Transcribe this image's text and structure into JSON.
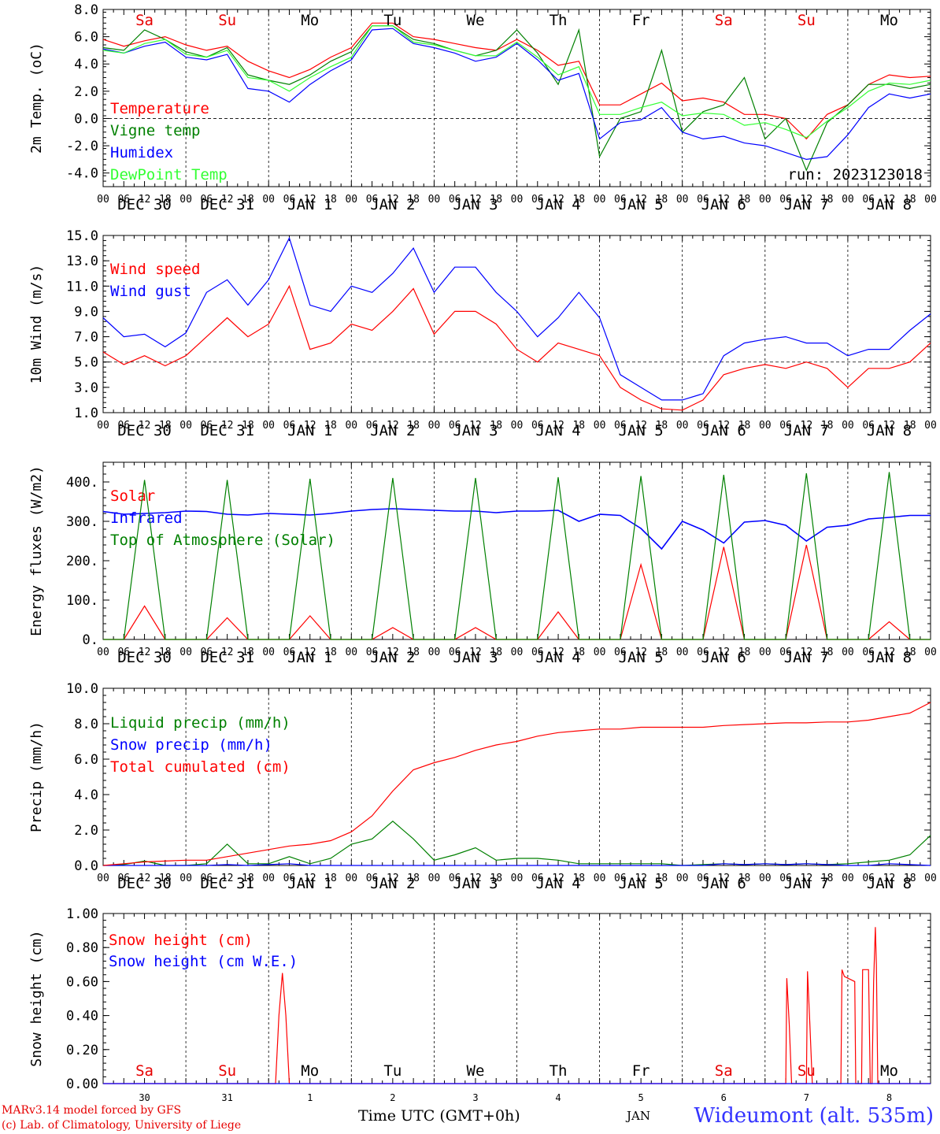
{
  "run_label": "run: 2023123018",
  "station_title": "Wideumont (alt. 535m)",
  "credits": [
    "MARv3.14 model forced by GFS",
    "(c) Lab. of Climatology, University of Liege"
  ],
  "x_axis_label": "Time UTC (GMT+0h)",
  "month_label": "JAN",
  "day_names": [
    "Sa",
    "Su",
    "Mo",
    "Tu",
    "We",
    "Th",
    "Fr",
    "Sa",
    "Su",
    "Mo"
  ],
  "weekend_flags": [
    true,
    true,
    false,
    false,
    false,
    false,
    false,
    true,
    true,
    false
  ],
  "date_labels": [
    "DEC 30",
    "DEC 31",
    "JAN  1",
    "JAN  2",
    "JAN  3",
    "JAN  4",
    "JAN  5",
    "JAN  6",
    "JAN  7",
    "JAN  8"
  ],
  "bottom_day_numbers": [
    "30",
    "31",
    "1",
    "2",
    "3",
    "4",
    "5",
    "6",
    "7",
    "8"
  ],
  "hour_ticks": [
    "00",
    "06",
    "12",
    "18"
  ],
  "final_hour_tick": "00",
  "chart_data": [
    {
      "type": "line",
      "ylabel": "2m Temp. (oC)",
      "ylim": [
        -5,
        8
      ],
      "yticks": [
        -4,
        -2,
        0,
        2,
        4,
        6,
        8
      ],
      "ytick_labels": [
        "-4.0",
        "-2.0",
        "0.0",
        "2.0",
        "4.0",
        "6.0",
        "8.0"
      ],
      "ref_line": 0,
      "x": [
        0,
        6,
        12,
        18,
        24,
        30,
        36,
        42,
        48,
        54,
        60,
        66,
        72,
        78,
        84,
        90,
        96,
        102,
        108,
        114,
        120,
        126,
        132,
        138,
        144,
        150,
        156,
        162,
        168,
        174,
        180,
        186,
        192,
        198,
        204,
        210,
        216,
        222,
        228,
        234,
        240
      ],
      "series": [
        {
          "name": "Temperature",
          "color": "#ff0000",
          "values": [
            5.8,
            5.3,
            5.7,
            6.0,
            5.4,
            5.0,
            5.3,
            4.2,
            3.5,
            3.0,
            3.6,
            4.5,
            5.2,
            7.0,
            7.0,
            6.0,
            5.8,
            5.5,
            5.2,
            5.0,
            5.8,
            5.0,
            3.9,
            4.2,
            1.0,
            1.0,
            1.8,
            2.6,
            1.3,
            1.5,
            1.2,
            0.3,
            0.3,
            0.0,
            -1.5,
            0.3,
            1.0,
            2.5,
            3.2,
            3.0,
            3.1
          ]
        },
        {
          "name": "Vigne temp",
          "color": "#008000",
          "values": [
            5.2,
            5.0,
            6.5,
            5.8,
            4.9,
            4.5,
            5.2,
            3.2,
            2.8,
            2.5,
            3.2,
            4.2,
            4.9,
            6.8,
            6.8,
            5.8,
            5.5,
            5.0,
            4.6,
            5.0,
            6.5,
            4.8,
            2.5,
            6.5,
            -2.8,
            0.0,
            0.5,
            5.0,
            -1.0,
            0.5,
            1.0,
            3.0,
            -1.5,
            0.0,
            -3.8,
            -0.3,
            1.0,
            2.5,
            2.5,
            2.2,
            2.5
          ]
        },
        {
          "name": "Humidex",
          "color": "#0000ff",
          "values": [
            5.1,
            4.8,
            5.3,
            5.6,
            4.5,
            4.3,
            4.7,
            2.2,
            2.0,
            1.2,
            2.5,
            3.5,
            4.3,
            6.5,
            6.6,
            5.5,
            5.2,
            4.8,
            4.2,
            4.5,
            5.5,
            4.3,
            2.8,
            3.3,
            -1.5,
            -0.3,
            -0.1,
            0.8,
            -1.0,
            -1.5,
            -1.3,
            -1.8,
            -2.0,
            -2.5,
            -3.0,
            -2.8,
            -1.2,
            0.8,
            1.8,
            1.5,
            1.8
          ]
        },
        {
          "name": "DewPoint Temp",
          "color": "#33ff33",
          "values": [
            5.0,
            4.8,
            5.5,
            5.8,
            4.7,
            4.5,
            5.0,
            3.0,
            2.8,
            2.0,
            3.0,
            3.8,
            4.5,
            6.8,
            6.8,
            5.6,
            5.4,
            5.0,
            4.6,
            4.6,
            5.6,
            4.5,
            3.2,
            3.8,
            0.3,
            0.3,
            0.8,
            1.2,
            0.2,
            0.4,
            0.3,
            -0.5,
            -0.3,
            -0.8,
            -1.4,
            -0.2,
            0.8,
            2.0,
            2.6,
            2.5,
            2.8
          ]
        }
      ]
    },
    {
      "type": "line",
      "ylabel": "10m Wind (m/s)",
      "ylim": [
        1,
        15
      ],
      "yticks": [
        1,
        3,
        5,
        7,
        9,
        11,
        13,
        15
      ],
      "ytick_labels": [
        "1.0",
        "3.0",
        "5.0",
        "7.0",
        "9.0",
        "11.0",
        "13.0",
        "15.0"
      ],
      "ref_line": 5,
      "x": [
        0,
        6,
        12,
        18,
        24,
        30,
        36,
        42,
        48,
        54,
        60,
        66,
        72,
        78,
        84,
        90,
        96,
        102,
        108,
        114,
        120,
        126,
        132,
        138,
        144,
        150,
        156,
        162,
        168,
        174,
        180,
        186,
        192,
        198,
        204,
        210,
        216,
        222,
        228,
        234,
        240
      ],
      "series": [
        {
          "name": "Wind speed",
          "color": "#ff0000",
          "values": [
            5.8,
            4.8,
            5.5,
            4.7,
            5.5,
            7.0,
            8.5,
            7.0,
            8.0,
            11.0,
            6.0,
            6.5,
            8.0,
            7.5,
            9.0,
            10.8,
            7.2,
            9.0,
            9.0,
            8.0,
            6.0,
            5.0,
            6.5,
            6.0,
            5.5,
            3.0,
            2.0,
            1.3,
            1.2,
            2.0,
            4.0,
            4.5,
            4.8,
            4.5,
            5.0,
            4.5,
            3.0,
            4.5,
            4.5,
            5.0,
            6.5
          ]
        },
        {
          "name": "Wind gust",
          "color": "#0000ff",
          "values": [
            8.5,
            7.0,
            7.2,
            6.2,
            7.3,
            10.5,
            11.5,
            9.5,
            11.5,
            14.8,
            9.5,
            9.0,
            11.0,
            10.5,
            12.0,
            14.0,
            10.5,
            12.5,
            12.5,
            10.5,
            9.0,
            7.0,
            8.5,
            10.5,
            8.5,
            4.0,
            3.0,
            2.0,
            2.0,
            2.5,
            5.5,
            6.5,
            6.8,
            7.0,
            6.5,
            6.5,
            5.5,
            6.0,
            6.0,
            7.5,
            8.8
          ]
        }
      ]
    },
    {
      "type": "line",
      "ylabel": "Energy fluxes (W/m2)",
      "ylim": [
        0,
        450
      ],
      "yticks": [
        0,
        100,
        200,
        300,
        400
      ],
      "ytick_labels": [
        "0.",
        "100.",
        "200.",
        "300.",
        "400."
      ],
      "ref_line": null,
      "x": [
        0,
        6,
        12,
        18,
        24,
        30,
        36,
        42,
        48,
        54,
        60,
        66,
        72,
        78,
        84,
        90,
        96,
        102,
        108,
        114,
        120,
        126,
        132,
        138,
        144,
        150,
        156,
        162,
        168,
        174,
        180,
        186,
        192,
        198,
        204,
        210,
        216,
        222,
        228,
        234,
        240
      ],
      "series": [
        {
          "name": "Solar",
          "color": "#ff0000",
          "values": [
            0,
            0,
            85,
            0,
            0,
            0,
            55,
            0,
            0,
            0,
            60,
            0,
            0,
            0,
            30,
            0,
            0,
            0,
            30,
            0,
            0,
            0,
            70,
            0,
            0,
            0,
            190,
            0,
            0,
            0,
            235,
            0,
            0,
            0,
            240,
            0,
            0,
            0,
            45,
            0,
            0
          ]
        },
        {
          "name": "Infrared",
          "color": "#0000ff",
          "values": [
            325,
            318,
            320,
            322,
            326,
            325,
            318,
            316,
            320,
            318,
            316,
            320,
            326,
            330,
            332,
            330,
            328,
            326,
            326,
            322,
            326,
            326,
            328,
            300,
            318,
            315,
            282,
            230,
            300,
            278,
            245,
            298,
            302,
            290,
            250,
            285,
            290,
            306,
            310,
            315,
            315
          ]
        },
        {
          "name": "Top of Atmosphere (Solar)",
          "color": "#008000",
          "values": [
            0,
            0,
            405,
            0,
            0,
            0,
            405,
            0,
            0,
            0,
            408,
            0,
            0,
            0,
            410,
            0,
            0,
            0,
            410,
            0,
            0,
            0,
            412,
            0,
            0,
            0,
            415,
            0,
            0,
            0,
            418,
            0,
            0,
            0,
            422,
            0,
            0,
            0,
            425,
            0,
            0
          ]
        }
      ]
    },
    {
      "type": "line",
      "ylabel": "Precip (mm/h)",
      "ylim": [
        0,
        10
      ],
      "yticks": [
        0,
        2,
        4,
        6,
        8,
        10
      ],
      "ytick_labels": [
        "0.0",
        "2.0",
        "4.0",
        "6.0",
        "8.0",
        "10.0"
      ],
      "ref_line": null,
      "x": [
        0,
        6,
        12,
        18,
        24,
        30,
        36,
        42,
        48,
        54,
        60,
        66,
        72,
        78,
        84,
        90,
        96,
        102,
        108,
        114,
        120,
        126,
        132,
        138,
        144,
        150,
        156,
        162,
        168,
        174,
        180,
        186,
        192,
        198,
        204,
        210,
        216,
        222,
        228,
        234,
        240
      ],
      "series": [
        {
          "name": "Liquid precip (mm/h)",
          "color": "#008000",
          "values": [
            0.0,
            0.05,
            0.25,
            0.0,
            0.0,
            0.1,
            1.2,
            0.1,
            0.1,
            0.5,
            0.1,
            0.4,
            1.2,
            1.5,
            2.5,
            1.5,
            0.3,
            0.6,
            1.0,
            0.3,
            0.4,
            0.4,
            0.3,
            0.1,
            0.1,
            0.1,
            0.1,
            0.1,
            0.0,
            0.05,
            0.1,
            0.05,
            0.1,
            0.05,
            0.1,
            0.05,
            0.1,
            0.2,
            0.3,
            0.6,
            1.7
          ]
        },
        {
          "name": "Snow precip (mm/h)",
          "color": "#0000ff",
          "values": [
            0.0,
            0.0,
            0.0,
            0.0,
            0.0,
            0.0,
            0.05,
            0.0,
            0.05,
            0.1,
            0.0,
            0.0,
            0.0,
            0.0,
            0.0,
            0.0,
            0.0,
            0.0,
            0.0,
            0.0,
            0.0,
            0.0,
            0.0,
            0.0,
            0.0,
            0.0,
            0.0,
            0.0,
            0.0,
            0.0,
            0.1,
            0.05,
            0.1,
            0.05,
            0.1,
            0.05,
            0.0,
            0.0,
            0.1,
            0.05,
            0.0
          ]
        },
        {
          "name": "Total cumulated (cm)",
          "color": "#ff0000",
          "values": [
            0.0,
            0.1,
            0.2,
            0.25,
            0.3,
            0.3,
            0.5,
            0.7,
            0.9,
            1.1,
            1.2,
            1.4,
            1.9,
            2.8,
            4.2,
            5.4,
            5.8,
            6.1,
            6.5,
            6.8,
            7.0,
            7.3,
            7.5,
            7.6,
            7.7,
            7.7,
            7.8,
            7.8,
            7.8,
            7.8,
            7.9,
            7.95,
            8.0,
            8.05,
            8.05,
            8.1,
            8.1,
            8.2,
            8.4,
            8.6,
            9.2
          ]
        }
      ]
    },
    {
      "type": "line",
      "ylabel": "Snow height (cm)",
      "ylim": [
        0,
        1
      ],
      "yticks": [
        0,
        0.2,
        0.4,
        0.6,
        0.8,
        1.0
      ],
      "ytick_labels": [
        "0.00",
        "0.20",
        "0.40",
        "0.60",
        "0.80",
        "1.00"
      ],
      "ref_line": null,
      "series": [
        {
          "name": "Snow height (cm)",
          "color": "#ff0000",
          "x": [
            0,
            50,
            51,
            52,
            53,
            54,
            198,
            198.3,
            199,
            199.7,
            200,
            204,
            204.3,
            205,
            205.7,
            206,
            208,
            214,
            214.3,
            215,
            218,
            218.3,
            219,
            219.7,
            220,
            220.3,
            221,
            222,
            222.5,
            223,
            223.5,
            224,
            224.3,
            224.7,
            225,
            226,
            240
          ],
          "values": [
            0,
            0,
            0.4,
            0.65,
            0.4,
            0,
            0,
            0.62,
            0.35,
            0.0,
            0,
            0,
            0.66,
            0.35,
            0,
            0,
            0,
            0,
            0.67,
            0.63,
            0.6,
            0.0,
            0,
            0,
            0,
            0.67,
            0.67,
            0.67,
            0.0,
            0,
            0.6,
            0.92,
            0.7,
            0.0,
            0,
            0,
            0
          ]
        },
        {
          "name": "Snow height (cm W.E.)",
          "color": "#0000ff",
          "x": [
            0,
            240
          ],
          "values": [
            0,
            0
          ]
        }
      ]
    }
  ]
}
